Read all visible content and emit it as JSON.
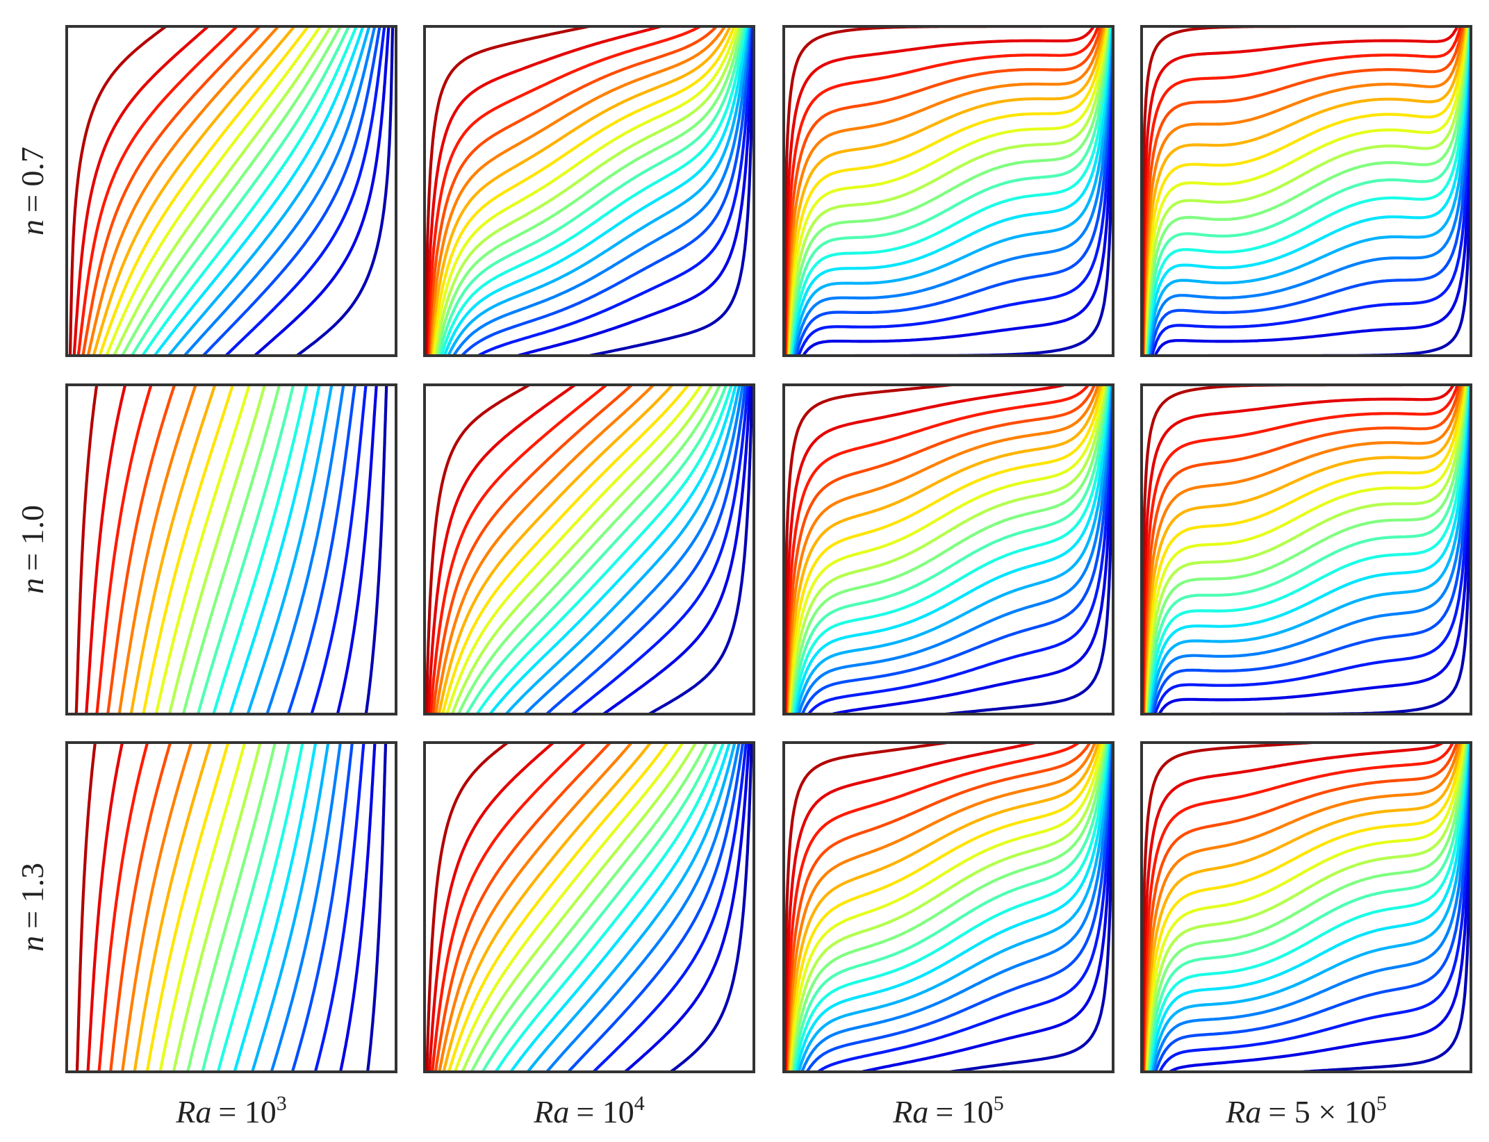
{
  "rows": [
    {
      "symbol": "n",
      "rest": "= 0.7"
    },
    {
      "symbol": "n",
      "rest": "= 1.0"
    },
    {
      "symbol": "n",
      "rest": "= 1.3"
    }
  ],
  "columns": [
    {
      "symbol": "Ra",
      "rest": "= 10",
      "sup": "3"
    },
    {
      "symbol": "Ra",
      "rest": "= 10",
      "sup": "4"
    },
    {
      "symbol": "Ra",
      "rest": "= 10",
      "sup": "5"
    },
    {
      "symbol": "Ra",
      "rest": "= 5 × 10",
      "sup": "5"
    }
  ]
}
